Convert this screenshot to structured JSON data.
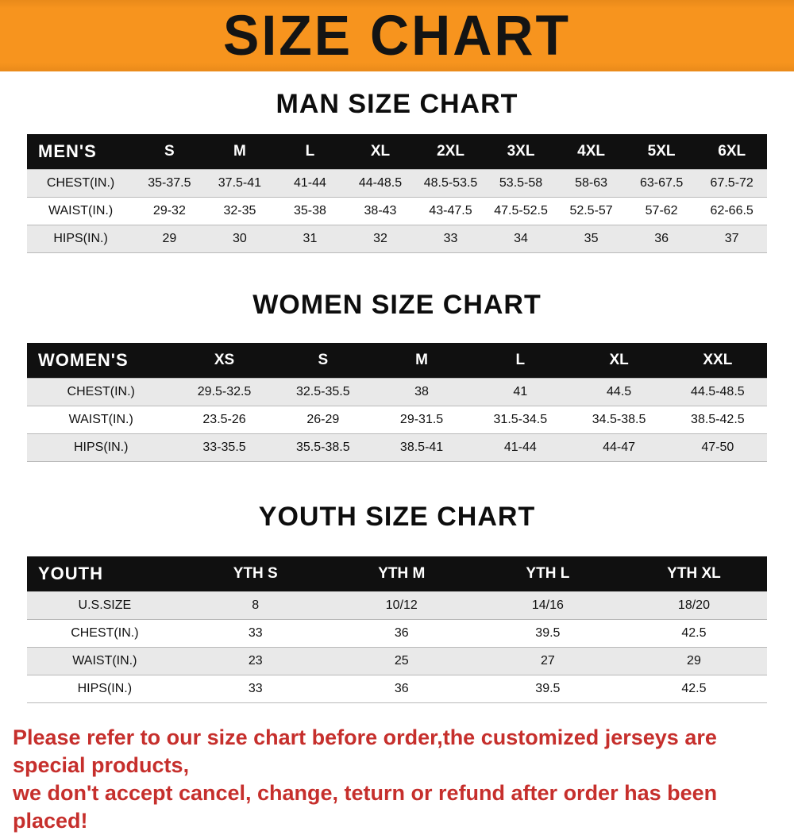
{
  "banner": {
    "title": "SIZE CHART"
  },
  "sections": [
    {
      "title": "MAN SIZE CHART",
      "table": {
        "header": [
          "MEN'S",
          "S",
          "M",
          "L",
          "XL",
          "2XL",
          "3XL",
          "4XL",
          "5XL",
          "6XL"
        ],
        "rows": [
          [
            "CHEST(IN.)",
            "35-37.5",
            "37.5-41",
            "41-44",
            "44-48.5",
            "48.5-53.5",
            "53.5-58",
            "58-63",
            "63-67.5",
            "67.5-72"
          ],
          [
            "WAIST(IN.)",
            "29-32",
            "32-35",
            "35-38",
            "38-43",
            "43-47.5",
            "47.5-52.5",
            "52.5-57",
            "57-62",
            "62-66.5"
          ],
          [
            "HIPS(IN.)",
            "29",
            "30",
            "31",
            "32",
            "33",
            "34",
            "35",
            "36",
            "37"
          ]
        ]
      }
    },
    {
      "title": "WOMEN SIZE CHART",
      "table": {
        "header": [
          "WOMEN'S",
          "XS",
          "S",
          "M",
          "L",
          "XL",
          "XXL"
        ],
        "rows": [
          [
            "CHEST(IN.)",
            "29.5-32.5",
            "32.5-35.5",
            "38",
            "41",
            "44.5",
            "44.5-48.5"
          ],
          [
            "WAIST(IN.)",
            "23.5-26",
            "26-29",
            "29-31.5",
            "31.5-34.5",
            "34.5-38.5",
            "38.5-42.5"
          ],
          [
            "HIPS(IN.)",
            "33-35.5",
            "35.5-38.5",
            "38.5-41",
            "41-44",
            "44-47",
            "47-50"
          ]
        ]
      }
    },
    {
      "title": "YOUTH SIZE CHART",
      "table": {
        "header": [
          "YOUTH",
          "YTH S",
          "YTH M",
          "YTH L",
          "YTH XL"
        ],
        "rows": [
          [
            "U.S.SIZE",
            "8",
            "10/12",
            "14/16",
            "18/20"
          ],
          [
            "CHEST(IN.)",
            "33",
            "36",
            "39.5",
            "42.5"
          ],
          [
            "WAIST(IN.)",
            "23",
            "25",
            "27",
            "29"
          ],
          [
            "HIPS(IN.)",
            "33",
            "36",
            "39.5",
            "42.5"
          ]
        ]
      }
    }
  ],
  "footer": {
    "line1": "Please refer to our size chart before order,the customized jerseys are special products,",
    "line2": "we don't accept cancel, change, teturn or refund after order has been placed!"
  },
  "colors": {
    "banner_orange": "#f7941e",
    "header_black": "#101010",
    "row_gray": "#e9e9e9",
    "note_red": "#c62f2c"
  }
}
